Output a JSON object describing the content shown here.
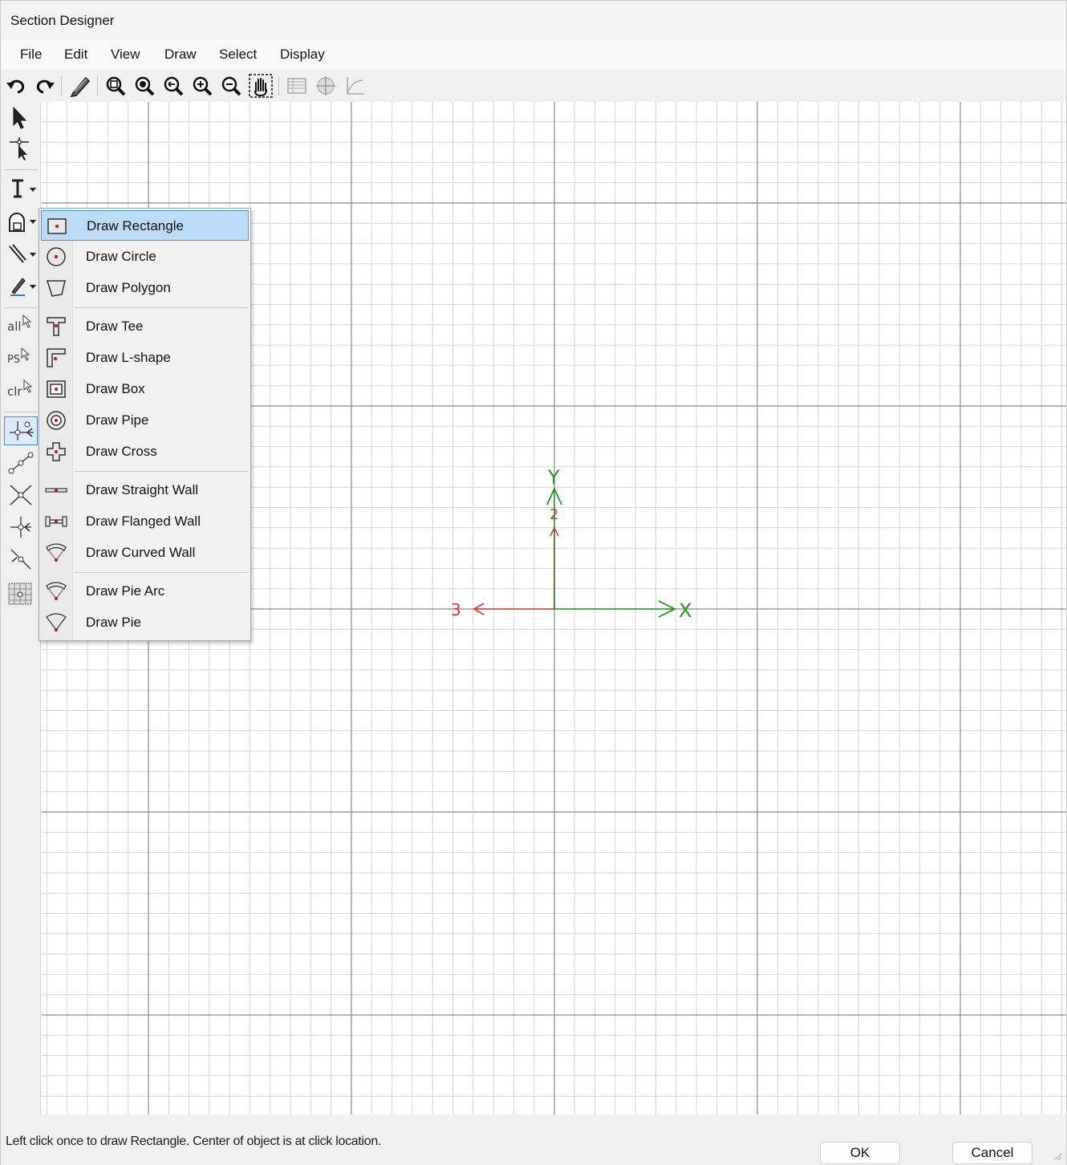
{
  "window": {
    "title": "Section Designer"
  },
  "menubar": {
    "items": [
      "File",
      "Edit",
      "View",
      "Draw",
      "Select",
      "Display"
    ]
  },
  "toolbar": {
    "icons": [
      "undo-icon",
      "redo-icon",
      "pencil-icon",
      "zoom-window-icon",
      "zoom-fit-icon",
      "zoom-previous-icon",
      "zoom-in-icon",
      "zoom-out-icon",
      "pan-icon",
      "table-icon",
      "target-icon",
      "curve-icon"
    ]
  },
  "lefttoolbar": {
    "labels": {
      "all": "all",
      "ps": "PS",
      "clr": "clr"
    }
  },
  "dropdown": {
    "items": [
      {
        "label": "Draw Rectangle",
        "icon": "rectangle-icon"
      },
      {
        "label": "Draw Circle",
        "icon": "circle-icon"
      },
      {
        "label": "Draw Polygon",
        "icon": "polygon-icon"
      },
      {
        "label": "Draw Tee",
        "icon": "tee-icon"
      },
      {
        "label": "Draw L-shape",
        "icon": "l-shape-icon"
      },
      {
        "label": "Draw Box",
        "icon": "box-icon"
      },
      {
        "label": "Draw Pipe",
        "icon": "pipe-icon"
      },
      {
        "label": "Draw Cross",
        "icon": "cross-icon"
      },
      {
        "label": "Draw Straight Wall",
        "icon": "straight-wall-icon"
      },
      {
        "label": "Draw Flanged Wall",
        "icon": "flanged-wall-icon"
      },
      {
        "label": "Draw Curved Wall",
        "icon": "curved-wall-icon"
      },
      {
        "label": "Draw Pie Arc",
        "icon": "pie-arc-icon"
      },
      {
        "label": "Draw Pie",
        "icon": "pie-icon"
      }
    ],
    "highlighted": "Draw Rectangle"
  },
  "canvas": {
    "axes": {
      "x_label": "X",
      "y_label": "Y",
      "axis2_label": "2",
      "axis3_label": "3"
    },
    "colors": {
      "global_axes": "#1e9a1e",
      "local_axes": "#e83030",
      "grid_minor": "#d4d4d4",
      "grid_major": "#8a8a8a"
    }
  },
  "status": {
    "message": "Left click once to draw Rectangle. Center of object is at click location."
  },
  "buttons": {
    "ok": "OK",
    "cancel": "Cancel"
  }
}
